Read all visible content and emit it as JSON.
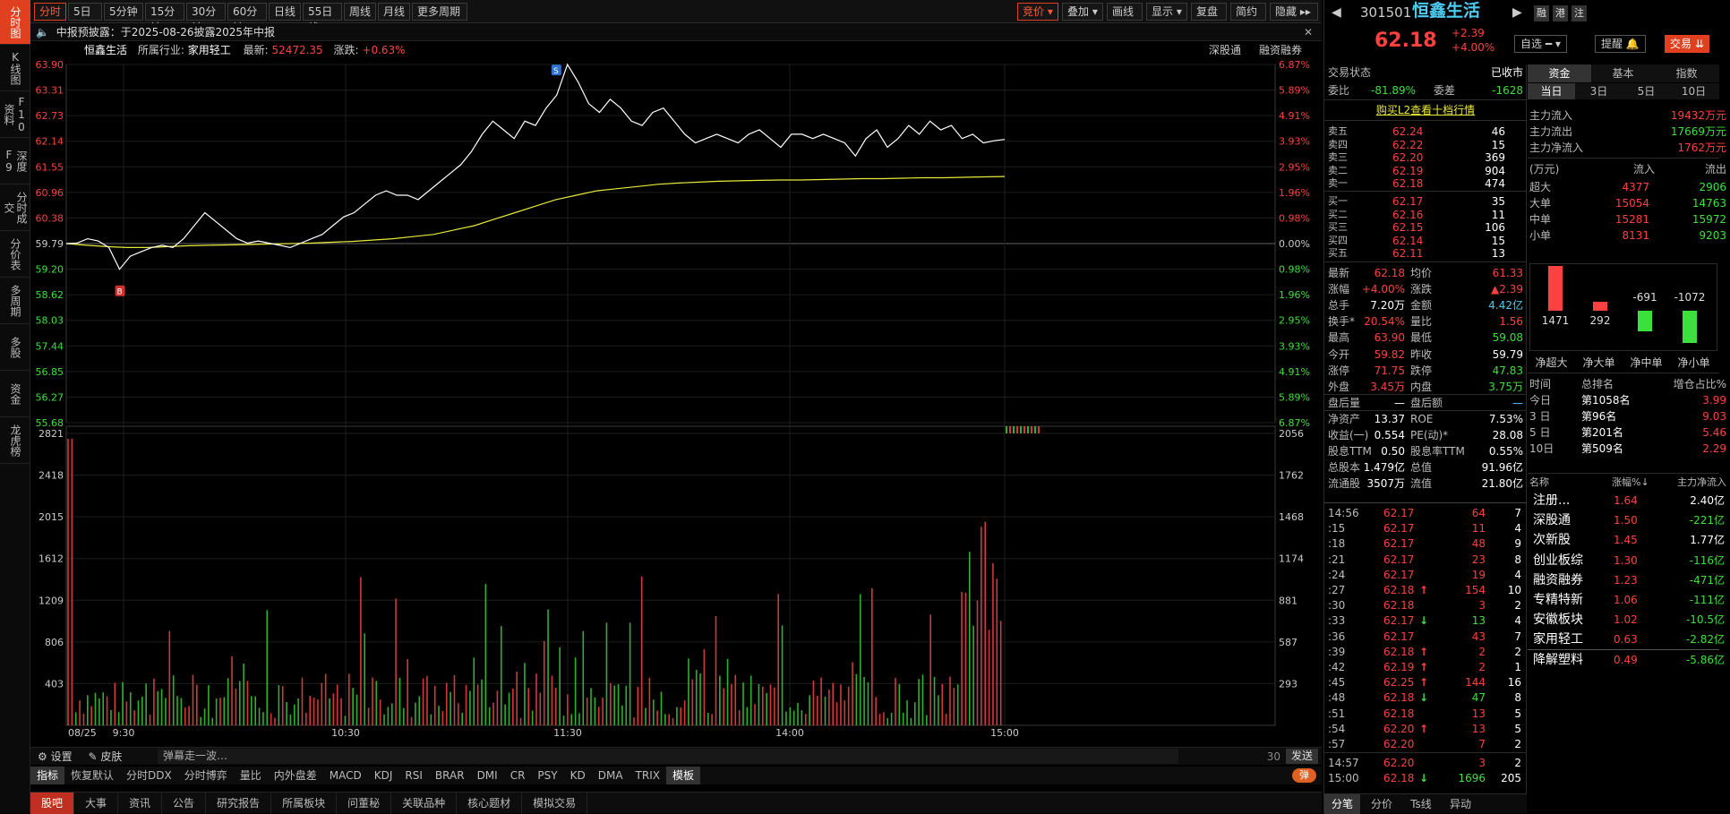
{
  "leftnav": [
    "分时图",
    "K线图",
    "F10资料",
    "深度F9",
    "分时成交",
    "分价表",
    "多周期",
    "多股",
    "资金",
    "龙虎榜"
  ],
  "toolbar": {
    "left": [
      "分时",
      "5日 ▾",
      "5分钟",
      "15分钟",
      "30分钟",
      "60分钟",
      "日线",
      "55日线",
      "周线",
      "月线",
      "更多周期 ▾"
    ],
    "right": [
      "竞价 ▾",
      "叠加 ▾",
      "画线",
      "显示 ▾",
      "复盘",
      "简约",
      "隐藏 ▸▸"
    ]
  },
  "notice": {
    "text": "中报预披露：于2025-08-26披露2025年中报",
    "close": "✕"
  },
  "stockline": {
    "name": "恒鑫生活",
    "industry_label": "所属行业:",
    "industry": "家用轻工",
    "index_label": "最新:",
    "index_val": "52472.35",
    "chg_label": "涨跌:",
    "chg_val": "+0.63%",
    "right1": "深股通",
    "right2": "融资融券"
  },
  "colors": {
    "up": "#ff4040",
    "down": "#3ce03c",
    "price_line": "#ffffff",
    "avg_line": "#e8e83c",
    "accent": "#e04020"
  },
  "chart_data": {
    "type": "line",
    "xlabels": [
      "08/25",
      "9:30",
      "10:30",
      "11:30",
      "14:00",
      "15:00"
    ],
    "price_ticks": [
      "63.90",
      "63.31",
      "62.73",
      "62.14",
      "61.55",
      "60.96",
      "60.38",
      "59.79",
      "59.20",
      "58.62",
      "58.03",
      "57.44",
      "56.85",
      "56.27",
      "55.68"
    ],
    "pct_ticks": [
      "6.87%",
      "5.89%",
      "4.91%",
      "3.93%",
      "2.95%",
      "1.96%",
      "0.98%",
      "0.00%",
      "0.98%",
      "1.96%",
      "2.95%",
      "3.93%",
      "4.91%",
      "5.89%",
      "6.87%"
    ],
    "vol_ticks": [
      "2821",
      "2418",
      "2015",
      "1612",
      "1209",
      "806",
      "403"
    ],
    "vol_right_ticks": [
      "2056",
      "1762",
      "1468",
      "1174",
      "881",
      "587",
      "293"
    ],
    "ylim": [
      55.68,
      63.9
    ],
    "prev_close": 59.79,
    "price": [
      59.79,
      59.8,
      59.9,
      59.85,
      59.7,
      59.2,
      59.5,
      59.6,
      59.7,
      59.75,
      59.7,
      59.9,
      60.2,
      60.5,
      60.3,
      60.1,
      59.9,
      59.8,
      59.85,
      59.8,
      59.75,
      59.7,
      59.8,
      59.9,
      60.0,
      60.2,
      60.4,
      60.5,
      60.7,
      60.9,
      61.0,
      60.9,
      60.9,
      60.8,
      61.0,
      61.2,
      61.4,
      61.6,
      61.9,
      62.3,
      62.6,
      62.4,
      62.2,
      62.6,
      62.5,
      62.9,
      63.2,
      63.9,
      63.5,
      63.0,
      62.8,
      63.1,
      62.9,
      62.6,
      62.5,
      62.8,
      62.9,
      62.6,
      62.3,
      62.1,
      62.2,
      62.3,
      62.2,
      62.1,
      62.3,
      62.4,
      62.2,
      62.0,
      62.3,
      62.3,
      62.2,
      62.3,
      62.2,
      62.1,
      61.8,
      62.2,
      62.4,
      62.0,
      62.2,
      62.5,
      62.3,
      62.6,
      62.4,
      62.5,
      62.2,
      62.3,
      62.1,
      62.15,
      62.18
    ],
    "avg": [
      59.79,
      59.75,
      59.72,
      59.7,
      59.7,
      59.72,
      59.74,
      59.75,
      59.76,
      59.77,
      59.78,
      59.79,
      59.8,
      59.82,
      59.84,
      59.87,
      59.9,
      59.95,
      60.0,
      60.1,
      60.2,
      60.35,
      60.5,
      60.65,
      60.8,
      60.9,
      61.0,
      61.05,
      61.1,
      61.15,
      61.18,
      61.2,
      61.22,
      61.23,
      61.24,
      61.25,
      61.25,
      61.26,
      61.27,
      61.28,
      61.28,
      61.29,
      61.3,
      61.3,
      61.31,
      61.32,
      61.33
    ],
    "buy_marker": "B",
    "sell_marker": "S"
  },
  "bottom": {
    "set": "设置",
    "skin": "皮肤",
    "danmu_placeholder": "弹幕走一波…",
    "count": "30",
    "send": "发送",
    "indicators": [
      "指标",
      "恢复默认",
      "分时DDX",
      "分时博弈",
      "量比",
      "内外盘差",
      "MACD",
      "KDJ",
      "RSI",
      "BRAR",
      "DMI",
      "CR",
      "PSY",
      "KD",
      "DMA",
      "TRIX",
      "模板"
    ],
    "danmu_toggle": "弹",
    "tabs": [
      "股吧",
      "大事",
      "资讯",
      "公告",
      "研究报告",
      "所属板块",
      "问董秘",
      "关联品种",
      "核心题材",
      "模拟交易"
    ]
  },
  "quote": {
    "code": "301501",
    "name": "恒鑫生活",
    "price": "62.18",
    "chg": "+2.39",
    "pct": "+4.00%",
    "tags": [
      "融",
      "港",
      "注"
    ],
    "btn_watch": "自选 ━ ▾",
    "btn_alert": "提醒 🔔",
    "btn_trade": "交易 ⇊"
  },
  "status": {
    "label": "交易状态",
    "value": "已收市",
    "wb_label": "委比",
    "wb": "-81.89%",
    "wc_label": "委差",
    "wc": "-1628",
    "l2": "购买L2查看十档行情"
  },
  "asks": [
    [
      "卖五",
      "62.24",
      "46"
    ],
    [
      "卖四",
      "62.22",
      "15"
    ],
    [
      "卖三",
      "62.20",
      "369"
    ],
    [
      "卖二",
      "62.19",
      "904"
    ],
    [
      "卖一",
      "62.18",
      "474"
    ]
  ],
  "bids": [
    [
      "买一",
      "62.17",
      "35"
    ],
    [
      "买二",
      "62.16",
      "11"
    ],
    [
      "买三",
      "62.15",
      "106"
    ],
    [
      "买四",
      "62.14",
      "15"
    ],
    [
      "买五",
      "62.11",
      "13"
    ]
  ],
  "stats": [
    [
      "最新",
      "62.18",
      "均价",
      "61.33"
    ],
    [
      "涨幅",
      "+4.00%",
      "涨跌",
      "▲2.39"
    ],
    [
      "总手",
      "7.20万",
      "金额",
      "4.42亿"
    ],
    [
      "换手*",
      "20.54%",
      "量比",
      "1.56"
    ],
    [
      "最高",
      "63.90",
      "最低",
      "59.08"
    ],
    [
      "今开",
      "59.82",
      "昨收",
      "59.79"
    ],
    [
      "涨停",
      "71.75",
      "跌停",
      "47.83"
    ],
    [
      "外盘",
      "3.45万",
      "内盘",
      "3.75万"
    ],
    [
      "盘后量",
      "—",
      "盘后额",
      "—"
    ],
    [
      "净资产",
      "13.37",
      "ROE",
      "7.53%"
    ],
    [
      "收益(一)",
      "0.554",
      "PE(动)*",
      "28.08"
    ],
    [
      "股息TTM",
      "0.50",
      "股息率TTM",
      "0.55%"
    ],
    [
      "总股本",
      "1.479亿",
      "总值",
      "91.96亿"
    ],
    [
      "流通股",
      "3507万",
      "流值",
      "21.80亿"
    ]
  ],
  "ticks": [
    [
      "14:56",
      "62.17",
      "",
      "64",
      "7"
    ],
    [
      ":15",
      "62.17",
      "",
      "11",
      "4"
    ],
    [
      ":18",
      "62.17",
      "",
      "48",
      "9"
    ],
    [
      ":21",
      "62.17",
      "",
      "23",
      "8"
    ],
    [
      ":24",
      "62.17",
      "",
      "19",
      "4"
    ],
    [
      ":27",
      "62.18",
      "↑",
      "154",
      "10"
    ],
    [
      ":30",
      "62.18",
      "",
      "3",
      "2"
    ],
    [
      ":33",
      "62.17",
      "↓",
      "13",
      "4"
    ],
    [
      ":36",
      "62.17",
      "",
      "43",
      "7"
    ],
    [
      ":39",
      "62.18",
      "↑",
      "2",
      "2"
    ],
    [
      ":42",
      "62.19",
      "↑",
      "2",
      "1"
    ],
    [
      ":45",
      "62.25",
      "↑",
      "144",
      "16"
    ],
    [
      ":48",
      "62.18",
      "↓",
      "47",
      "8"
    ],
    [
      ":51",
      "62.18",
      "",
      "13",
      "5"
    ],
    [
      ":54",
      "62.20",
      "↑",
      "13",
      "5"
    ],
    [
      ":57",
      "62.20",
      "",
      "7",
      "2"
    ],
    [
      "14:57",
      "62.20",
      "",
      "3",
      "2"
    ],
    [
      "15:00",
      "62.18",
      "↓",
      "1696",
      "205"
    ]
  ],
  "tick_tabs": [
    "分笔",
    "分价",
    "Ts线",
    "异动"
  ],
  "fund": {
    "tabs": [
      "资金",
      "基本",
      "指数"
    ],
    "periods": [
      "当日",
      "3日",
      "5日",
      "10日"
    ],
    "main_in_label": "主力流入",
    "main_in": "19432万元",
    "main_out_label": "主力流出",
    "main_out": "17669万元",
    "main_net_label": "主力净流入",
    "main_net": "1762万元",
    "unit": "(万元)",
    "in_h": "流入",
    "out_h": "流出",
    "rows": [
      [
        "超大",
        "4377",
        "2906"
      ],
      [
        "大单",
        "15054",
        "14763"
      ],
      [
        "中单",
        "15281",
        "15972"
      ],
      [
        "小单",
        "8131",
        "9203"
      ]
    ],
    "net_vals": [
      "1471",
      "292",
      "-691",
      "-1072"
    ],
    "net_labels": [
      "净超大",
      "净大单",
      "净中单",
      "净小单"
    ],
    "rank_h": [
      "时间",
      "总排名",
      "增仓占比%"
    ],
    "ranks": [
      [
        "今日",
        "第1058名",
        "3.99"
      ],
      [
        "3 日",
        "第96名",
        "9.03"
      ],
      [
        "5 日",
        "第201名",
        "5.46"
      ],
      [
        "10日",
        "第509名",
        "2.29"
      ]
    ],
    "sec_h": [
      "名称",
      "涨幅%↓",
      "主力净流入"
    ],
    "sectors": [
      [
        "注册...",
        "1.64",
        "2.40亿"
      ],
      [
        "深股通",
        "1.50",
        "-221亿"
      ],
      [
        "次新股",
        "1.45",
        "1.77亿"
      ],
      [
        "创业板综",
        "1.30",
        "-116亿"
      ],
      [
        "融资融券",
        "1.23",
        "-471亿"
      ],
      [
        "专精特新",
        "1.06",
        "-111亿"
      ],
      [
        "安徽板块",
        "1.02",
        "-10.5亿"
      ],
      [
        "家用轻工",
        "0.63",
        "-2.82亿"
      ],
      [
        "降解塑料",
        "0.49",
        "-5.86亿"
      ]
    ]
  }
}
